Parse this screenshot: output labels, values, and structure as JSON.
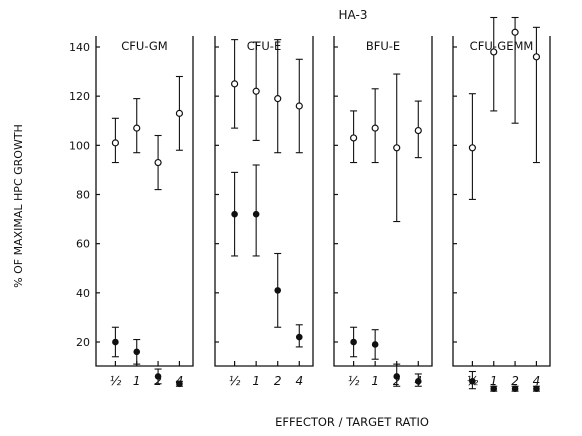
{
  "chart_data": {
    "type": "scatter",
    "title": "HA-3",
    "xlabel": "EFFECTOR / TARGET RATIO",
    "ylabel": "% OF MAXIMAL HPC GROWTH",
    "ylim": [
      0,
      155
    ],
    "yticks": [
      20,
      40,
      60,
      80,
      100,
      120,
      140
    ],
    "grid": false,
    "categories": [
      "½",
      "1",
      "2",
      "4"
    ],
    "panels": [
      {
        "title": "CFU-GM",
        "series": [
          {
            "marker": "open",
            "values": [
              101,
              107,
              93,
              113
            ],
            "low": [
              93,
              97,
              82,
              98
            ],
            "high": [
              111,
              119,
              104,
              128
            ]
          },
          {
            "marker": "filled",
            "values": [
              20,
              16,
              6,
              3
            ],
            "low": [
              14,
              11,
              3,
              2
            ],
            "high": [
              26,
              21,
              9,
              4
            ]
          }
        ]
      },
      {
        "title": "CFU-E",
        "series": [
          {
            "marker": "open",
            "values": [
              125,
              122,
              119,
              116
            ],
            "low": [
              107,
              102,
              97,
              97
            ],
            "high": [
              143,
              142,
              143,
              135
            ]
          },
          {
            "marker": "filled",
            "values": [
              72,
              72,
              41,
              22
            ],
            "low": [
              55,
              55,
              26,
              18
            ],
            "high": [
              89,
              92,
              56,
              27
            ]
          }
        ]
      },
      {
        "title": "BFU-E",
        "series": [
          {
            "marker": "open",
            "values": [
              103,
              107,
              99,
              106
            ],
            "low": [
              93,
              93,
              69,
              95
            ],
            "high": [
              114,
              123,
              129,
              118
            ]
          },
          {
            "marker": "filled",
            "values": [
              20,
              19,
              6,
              4
            ],
            "low": [
              14,
              13,
              2,
              2
            ],
            "high": [
              26,
              25,
              11,
              7
            ]
          }
        ]
      },
      {
        "title": "CFU-GEMM",
        "series": [
          {
            "marker": "open",
            "values": [
              99,
              138,
              146,
              136
            ],
            "low": [
              78,
              114,
              109,
              93
            ],
            "high": [
              121,
              152,
              152,
              148
            ]
          },
          {
            "marker": "filled",
            "values": [
              4,
              1,
              1,
              1
            ],
            "low": [
              1,
              0,
              0,
              0
            ],
            "high": [
              8,
              2,
              2,
              2
            ]
          }
        ]
      }
    ]
  }
}
